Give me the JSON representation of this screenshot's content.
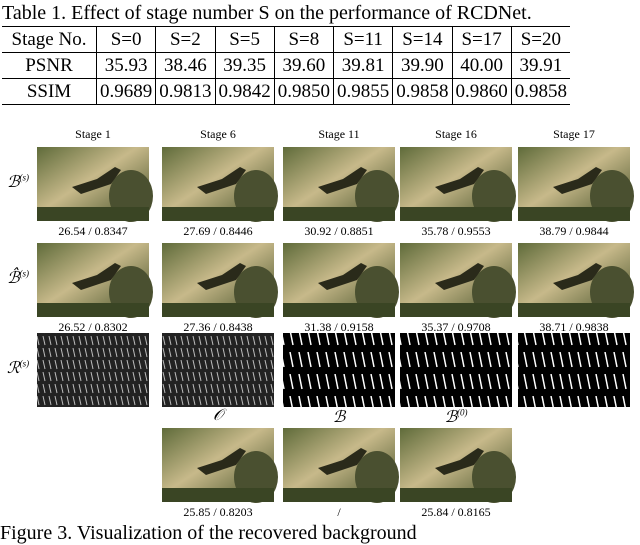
{
  "table": {
    "caption": "Table 1. Effect of stage number S on the performance of RCDNet.",
    "header": [
      "Stage No.",
      "S=0",
      "S=2",
      "S=5",
      "S=8",
      "S=11",
      "S=14",
      "S=17",
      "S=20"
    ],
    "rows": [
      [
        "PSNR",
        "35.93",
        "38.46",
        "39.35",
        "39.60",
        "39.81",
        "39.90",
        "40.00",
        "39.91"
      ],
      [
        "SSIM",
        "0.9689",
        "0.9813",
        "0.9842",
        "0.9850",
        "0.9855",
        "0.9858",
        "0.9860",
        "0.9858"
      ]
    ]
  },
  "figure": {
    "columns": [
      "Stage 1",
      "Stage 6",
      "Stage 11",
      "Stage 16",
      "Stage 17"
    ],
    "rows": [
      {
        "symbol": "ℬ",
        "sup": "(s)",
        "scores": [
          "26.54 / 0.8347",
          "27.69 / 0.8446",
          "30.92 / 0.8851",
          "35.78 / 0.9553",
          "38.79 / 0.9844"
        ]
      },
      {
        "symbol": "ℬ̂",
        "sup": "(s)",
        "scores": [
          "26.52 / 0.8302",
          "27.36 / 0.8438",
          "31.38 / 0.9158",
          "35.37 / 0.9708",
          "38.71 / 0.9838"
        ]
      },
      {
        "symbol": "ℛ",
        "sup": "(s)"
      }
    ],
    "bottom": [
      {
        "symbol": "𝒪",
        "score": "25.85 / 0.8203"
      },
      {
        "symbol": "ℬ",
        "score": "/"
      },
      {
        "symbol": "ℬ",
        "sup": "(0)",
        "score": "25.84 / 0.8165"
      }
    ],
    "caption": "Figure 3. Visualization of the recovered background"
  }
}
